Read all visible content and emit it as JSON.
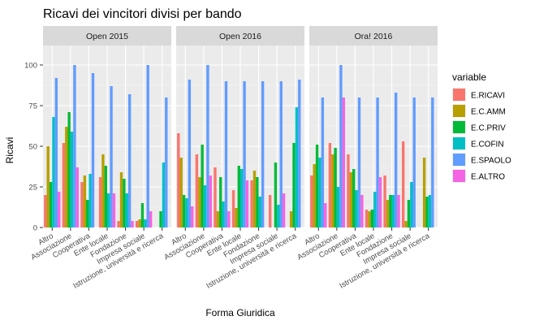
{
  "chart_data": {
    "type": "bar",
    "title": "Ricavi dei vincitori divisi per bando",
    "xlabel": "Forma Giuridica",
    "ylabel": "Ricavi",
    "ylim": [
      0,
      112
    ],
    "yticks": [
      0,
      25,
      50,
      75,
      100
    ],
    "grid": true,
    "legend": {
      "title": "variable",
      "position": "right"
    },
    "categories": [
      "Altro",
      "Associazione",
      "Cooperativa",
      "Ente locale",
      "Fondazione",
      "Impresa sociale",
      "Istruzione, università e ricerca"
    ],
    "series_names": [
      "E.RICAVI",
      "E.C.AMM",
      "E.C.PRIV",
      "E.COFIN",
      "E.SPAOLO",
      "E.ALTRO"
    ],
    "colors": [
      "#F8766D",
      "#B79F00",
      "#00BA38",
      "#00BFC4",
      "#619CFF",
      "#F564E3"
    ],
    "facets": [
      {
        "label": "Open 2015",
        "values": [
          [
            20,
            50,
            28,
            68,
            92,
            22
          ],
          [
            52,
            62,
            71,
            59,
            100,
            37
          ],
          [
            28,
            32,
            17,
            33,
            95,
            0
          ],
          [
            31,
            45,
            38,
            21,
            87,
            21
          ],
          [
            4,
            34,
            30,
            21,
            82,
            4
          ],
          [
            4,
            5,
            15,
            5,
            100,
            10
          ],
          [
            0,
            0,
            10,
            40,
            80,
            0
          ]
        ]
      },
      {
        "label": "Open 2016",
        "values": [
          [
            58,
            43,
            20,
            18,
            91,
            13
          ],
          [
            45,
            31,
            51,
            26,
            100,
            32
          ],
          [
            37,
            10,
            31,
            16,
            90,
            10
          ],
          [
            23,
            12,
            38,
            36,
            90,
            29
          ],
          [
            29,
            35,
            31,
            19,
            90,
            0
          ],
          [
            20,
            0,
            40,
            14,
            90,
            21
          ],
          [
            0,
            10,
            52,
            74,
            91,
            0
          ]
        ]
      },
      {
        "label": "Ora! 2016",
        "values": [
          [
            32,
            39,
            51,
            43,
            80,
            15
          ],
          [
            52,
            45,
            49,
            25,
            100,
            80
          ],
          [
            45,
            34,
            36,
            23,
            80,
            20
          ],
          [
            11,
            10,
            11,
            22,
            80,
            31
          ],
          [
            32,
            17,
            20,
            20,
            83,
            20
          ],
          [
            53,
            4,
            17,
            28,
            80,
            0
          ],
          [
            0,
            43,
            19,
            20,
            80,
            0
          ]
        ]
      }
    ]
  }
}
